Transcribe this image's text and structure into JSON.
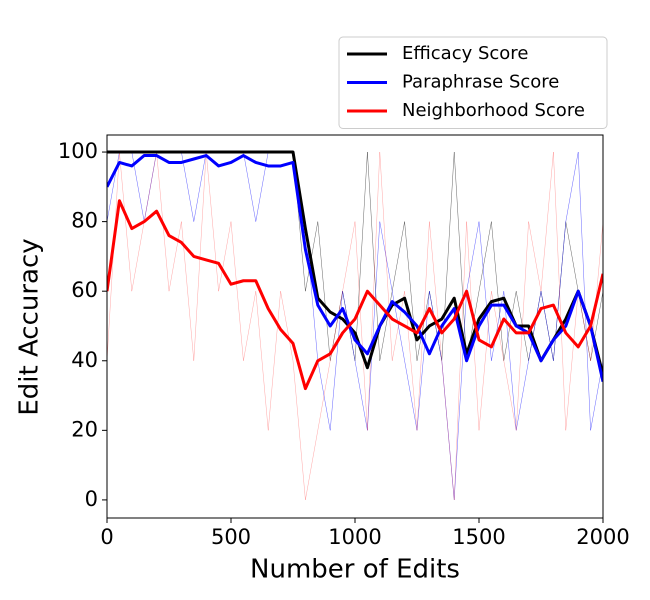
{
  "chart_data": {
    "type": "line",
    "xlabel": "Number of Edits",
    "ylabel": "Edit Accuracy",
    "x": [
      0,
      50,
      100,
      150,
      200,
      250,
      300,
      350,
      400,
      450,
      500,
      550,
      600,
      650,
      700,
      750,
      800,
      850,
      900,
      950,
      1000,
      1050,
      1100,
      1150,
      1200,
      1250,
      1300,
      1350,
      1400,
      1450,
      1500,
      1550,
      1600,
      1650,
      1700,
      1750,
      1800,
      1850,
      1900,
      1950,
      2000
    ],
    "xlim": [
      0,
      2000
    ],
    "ylim": [
      -5.2,
      104.9
    ],
    "xticks": [
      0,
      500,
      1000,
      1500,
      2000
    ],
    "yticks": [
      0,
      20,
      40,
      60,
      80,
      100
    ],
    "legend": "upper right",
    "series": [
      {
        "color": "#000000",
        "linewidth": 0.5,
        "opacity": 0.6,
        "values": [
          100,
          100,
          100,
          100,
          100,
          100,
          100,
          100,
          100,
          100,
          100,
          100,
          100,
          100,
          100,
          100,
          60,
          80,
          40,
          60,
          40,
          100,
          40,
          60,
          80,
          40,
          60,
          40,
          100,
          40,
          60,
          80,
          40,
          60,
          40,
          60,
          40,
          80,
          60,
          40,
          60
        ]
      },
      {
        "color": "#0000ff",
        "linewidth": 0.5,
        "opacity": 0.6,
        "values": [
          80,
          100,
          100,
          80,
          100,
          100,
          100,
          80,
          100,
          100,
          100,
          100,
          80,
          100,
          100,
          100,
          80,
          40,
          20,
          60,
          40,
          20,
          80,
          60,
          40,
          20,
          60,
          40,
          0,
          60,
          80,
          40,
          60,
          20,
          40,
          60,
          40,
          80,
          100,
          20,
          40
        ]
      },
      {
        "color": "#ff0000",
        "linewidth": 0.5,
        "opacity": 0.35,
        "values": [
          40,
          100,
          60,
          80,
          100,
          60,
          80,
          40,
          100,
          60,
          80,
          40,
          60,
          20,
          60,
          40,
          0,
          20,
          40,
          60,
          80,
          20,
          100,
          40,
          60,
          20,
          80,
          40,
          0,
          80,
          20,
          60,
          40,
          20,
          80,
          60,
          100,
          20,
          60,
          40,
          80
        ]
      },
      {
        "name": "Efficacy Score",
        "color": "#000000",
        "linewidth": 3,
        "opacity": 1,
        "values": [
          100,
          100,
          100,
          100,
          100,
          100,
          100,
          100,
          100,
          100,
          100,
          100,
          100,
          100,
          100,
          100,
          78,
          58,
          54,
          52,
          48,
          38,
          50,
          56,
          58,
          46,
          50,
          52,
          58,
          42,
          52,
          57,
          58,
          50,
          50,
          40,
          46,
          52,
          60,
          50,
          36
        ]
      },
      {
        "name": "Paraphrase Score",
        "color": "#0000ff",
        "linewidth": 3,
        "opacity": 1,
        "values": [
          90,
          97,
          96,
          99,
          99,
          97,
          97,
          98,
          99,
          96,
          97,
          99,
          97,
          96,
          96,
          97,
          72,
          56,
          50,
          55,
          46,
          42,
          50,
          57,
          54,
          50,
          42,
          50,
          55,
          40,
          50,
          56,
          56,
          50,
          48,
          40,
          46,
          50,
          60,
          50,
          34
        ]
      },
      {
        "name": "Neighborhood Score",
        "color": "#ff0000",
        "linewidth": 3,
        "opacity": 1,
        "values": [
          60,
          86,
          78,
          80,
          83,
          76,
          74,
          70,
          69,
          68,
          62,
          63,
          63,
          55,
          49,
          45,
          32,
          40,
          42,
          48,
          52,
          60,
          56,
          52,
          50,
          48,
          55,
          48,
          52,
          60,
          46,
          44,
          52,
          48,
          48,
          55,
          56,
          48,
          44,
          50,
          65
        ]
      }
    ]
  }
}
